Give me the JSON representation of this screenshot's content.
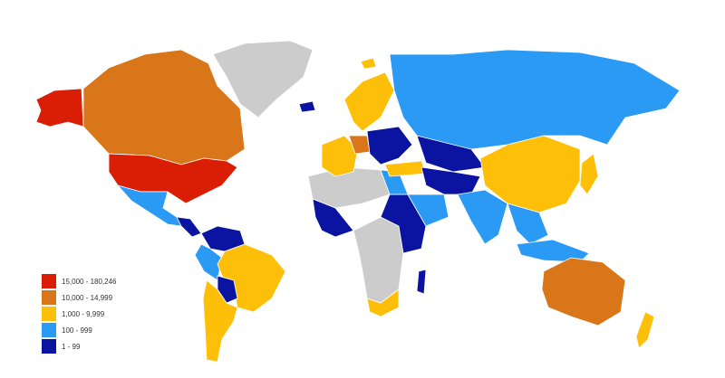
{
  "legend": [
    {
      "label": "15,000 - 180,246",
      "color": "#d91e05",
      "bin": "b5"
    },
    {
      "label": "10,000 - 14,999",
      "color": "#d9761a",
      "bin": "b4"
    },
    {
      "label": "1,000 - 9,999",
      "color": "#fdbf08",
      "bin": "b3"
    },
    {
      "label": "100 - 999",
      "color": "#2a9af5",
      "bin": "b2"
    },
    {
      "label": "1 - 99",
      "color": "#0a14a0",
      "bin": "b1"
    }
  ],
  "no_data_color": "#cccccc",
  "regions": [
    {
      "name": "alaska",
      "bin": "b5"
    },
    {
      "name": "canada",
      "bin": "b4"
    },
    {
      "name": "usa",
      "bin": "b5"
    },
    {
      "name": "greenland",
      "bin": "none"
    },
    {
      "name": "mexico",
      "bin": "b2"
    },
    {
      "name": "central-america",
      "bin": "b1"
    },
    {
      "name": "colombia-venezuela",
      "bin": "b1"
    },
    {
      "name": "peru",
      "bin": "b2"
    },
    {
      "name": "brazil",
      "bin": "b3"
    },
    {
      "name": "bolivia",
      "bin": "b1"
    },
    {
      "name": "argentina-chile",
      "bin": "b3"
    },
    {
      "name": "north-africa",
      "bin": "none"
    },
    {
      "name": "west-africa",
      "bin": "b1"
    },
    {
      "name": "central-africa",
      "bin": "none"
    },
    {
      "name": "east-africa",
      "bin": "b1"
    },
    {
      "name": "egypt",
      "bin": "b2"
    },
    {
      "name": "south-africa",
      "bin": "b3"
    },
    {
      "name": "madagascar",
      "bin": "b1"
    },
    {
      "name": "scandinavia",
      "bin": "b3"
    },
    {
      "name": "western-europe",
      "bin": "b3"
    },
    {
      "name": "germany",
      "bin": "b4"
    },
    {
      "name": "eastern-europe",
      "bin": "b1"
    },
    {
      "name": "turkey",
      "bin": "b3"
    },
    {
      "name": "russia",
      "bin": "b2"
    },
    {
      "name": "kazakhstan",
      "bin": "b1"
    },
    {
      "name": "middle-east",
      "bin": "b1"
    },
    {
      "name": "arabia",
      "bin": "b2"
    },
    {
      "name": "china",
      "bin": "b3"
    },
    {
      "name": "india",
      "bin": "b2"
    },
    {
      "name": "southeast-asia",
      "bin": "b2"
    },
    {
      "name": "indonesia",
      "bin": "b2"
    },
    {
      "name": "japan",
      "bin": "b3"
    },
    {
      "name": "australia",
      "bin": "b4"
    },
    {
      "name": "new-zealand",
      "bin": "b3"
    },
    {
      "name": "iceland",
      "bin": "b1"
    },
    {
      "name": "svalbard",
      "bin": "b3"
    }
  ]
}
